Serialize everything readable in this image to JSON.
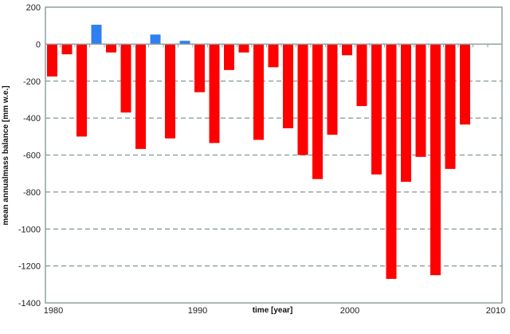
{
  "chart_data": {
    "type": "bar",
    "title": "",
    "xlabel": "time [year]",
    "ylabel": "mean annualmass balance [mm w.e.]",
    "ylim": [
      -1400,
      200
    ],
    "xlim": [
      1980,
      2010
    ],
    "yticks": [
      200,
      0,
      -200,
      -400,
      -600,
      -800,
      -1000,
      -1200,
      -1400
    ],
    "xticks": [
      1980,
      1990,
      2000,
      2010
    ],
    "grid": "horizontal dashed",
    "legend": "none",
    "colors": {
      "negative": "#ff0000",
      "positive": "#2f7ff0",
      "grid": "#7f9696",
      "axis": "#8fa0a0"
    },
    "categories": [
      1980,
      1981,
      1982,
      1983,
      1984,
      1985,
      1986,
      1987,
      1988,
      1989,
      1990,
      1991,
      1992,
      1993,
      1994,
      1995,
      1996,
      1997,
      1998,
      1999,
      2000,
      2001,
      2002,
      2003,
      2004,
      2005,
      2006,
      2007,
      2008
    ],
    "values": [
      -175,
      -55,
      -500,
      105,
      -45,
      -370,
      -567,
      52,
      -510,
      18,
      -260,
      -535,
      -140,
      -45,
      -518,
      -125,
      -455,
      -600,
      -730,
      -490,
      -60,
      -335,
      -705,
      -1270,
      -745,
      -610,
      -1250,
      -675,
      -435
    ]
  }
}
